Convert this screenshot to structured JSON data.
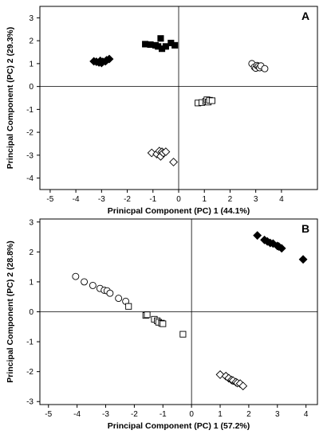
{
  "chart_data": [
    {
      "type": "scatter",
      "panel_label": "A",
      "xlabel": "Prinicpal Component (PC) 1 (44.1%)",
      "ylabel": "Principal Component (PC) 2 (29.3%)",
      "xlim": [
        -5.4,
        5.4
      ],
      "ylim": [
        -4.5,
        3.5
      ],
      "xticks": [
        -5,
        -4,
        -3,
        -2,
        -1,
        0,
        1,
        2,
        3,
        4
      ],
      "yticks": [
        -4,
        -3,
        -2,
        -1,
        0,
        1,
        2,
        3
      ],
      "zero_lines": true,
      "grid": false,
      "series": [
        {
          "marker": "diamond",
          "filled": true,
          "color": "#000000",
          "points": [
            [
              -3.3,
              1.1
            ],
            [
              -3.2,
              1.08
            ],
            [
              -3.1,
              1.05
            ],
            [
              -3.05,
              1.12
            ],
            [
              -3.0,
              1.03
            ],
            [
              -2.95,
              1.08
            ],
            [
              -2.85,
              1.1
            ],
            [
              -2.8,
              1.15
            ],
            [
              -2.7,
              1.2
            ]
          ]
        },
        {
          "marker": "square",
          "filled": true,
          "color": "#000000",
          "points": [
            [
              -1.3,
              1.85
            ],
            [
              -1.1,
              1.83
            ],
            [
              -0.9,
              1.8
            ],
            [
              -0.8,
              1.75
            ],
            [
              -0.7,
              2.1
            ],
            [
              -0.65,
              1.65
            ],
            [
              -0.5,
              1.75
            ],
            [
              -0.3,
              1.9
            ],
            [
              -0.15,
              1.8
            ]
          ]
        },
        {
          "marker": "circle",
          "filled": false,
          "color": "#000000",
          "points": [
            [
              2.85,
              1.0
            ],
            [
              2.95,
              0.85
            ],
            [
              3.0,
              0.8
            ],
            [
              3.05,
              0.92
            ],
            [
              3.1,
              0.88
            ],
            [
              3.15,
              0.82
            ],
            [
              3.2,
              0.9
            ],
            [
              3.35,
              0.78
            ]
          ]
        },
        {
          "marker": "square",
          "filled": false,
          "color": "#000000",
          "points": [
            [
              0.75,
              -0.72
            ],
            [
              0.9,
              -0.7
            ],
            [
              1.05,
              -0.65
            ],
            [
              1.1,
              -0.58
            ],
            [
              1.15,
              -0.68
            ],
            [
              1.2,
              -0.6
            ],
            [
              1.3,
              -0.62
            ]
          ]
        },
        {
          "marker": "diamond",
          "filled": false,
          "color": "#000000",
          "points": [
            [
              -1.05,
              -2.9
            ],
            [
              -0.85,
              -2.95
            ],
            [
              -0.75,
              -2.82
            ],
            [
              -0.7,
              -3.05
            ],
            [
              -0.65,
              -2.85
            ],
            [
              -0.6,
              -2.9
            ],
            [
              -0.5,
              -2.85
            ],
            [
              -0.2,
              -3.3
            ]
          ]
        }
      ]
    },
    {
      "type": "scatter",
      "panel_label": "B",
      "xlabel": "Principal Component (PC) 1 (57.2%)",
      "ylabel": "Principal Component (PC) 2 (28.8%)",
      "xlim": [
        -5.3,
        4.4
      ],
      "ylim": [
        -3.1,
        3.1
      ],
      "xticks": [
        -5,
        -4,
        -3,
        -2,
        -1,
        0,
        1,
        2,
        3,
        4
      ],
      "yticks": [
        -3,
        -2,
        -1,
        0,
        1,
        2,
        3
      ],
      "zero_lines": true,
      "grid": false,
      "series": [
        {
          "marker": "diamond",
          "filled": true,
          "color": "#000000",
          "points": [
            [
              2.3,
              2.55
            ],
            [
              2.55,
              2.4
            ],
            [
              2.65,
              2.35
            ],
            [
              2.75,
              2.3
            ],
            [
              2.85,
              2.28
            ],
            [
              3.0,
              2.2
            ],
            [
              3.05,
              2.18
            ],
            [
              3.15,
              2.12
            ],
            [
              3.9,
              1.75
            ]
          ]
        },
        {
          "marker": "circle",
          "filled": false,
          "color": "#000000",
          "points": [
            [
              -4.05,
              1.18
            ],
            [
              -3.75,
              1.0
            ],
            [
              -3.45,
              0.88
            ],
            [
              -3.2,
              0.78
            ],
            [
              -3.05,
              0.72
            ],
            [
              -2.95,
              0.7
            ],
            [
              -2.85,
              0.62
            ],
            [
              -2.55,
              0.45
            ],
            [
              -2.3,
              0.35
            ]
          ]
        },
        {
          "marker": "square",
          "filled": false,
          "color": "#000000",
          "points": [
            [
              -2.2,
              0.18
            ],
            [
              -1.6,
              -0.12
            ],
            [
              -1.55,
              -0.1
            ],
            [
              -1.3,
              -0.25
            ],
            [
              -1.2,
              -0.3
            ],
            [
              -1.15,
              -0.35
            ],
            [
              -1.05,
              -0.38
            ],
            [
              -1.0,
              -0.4
            ],
            [
              -0.3,
              -0.75
            ]
          ]
        },
        {
          "marker": "diamond",
          "filled": false,
          "color": "#000000",
          "points": [
            [
              1.0,
              -2.1
            ],
            [
              1.2,
              -2.15
            ],
            [
              1.3,
              -2.22
            ],
            [
              1.4,
              -2.28
            ],
            [
              1.45,
              -2.3
            ],
            [
              1.55,
              -2.35
            ],
            [
              1.6,
              -2.38
            ],
            [
              1.7,
              -2.4
            ],
            [
              1.8,
              -2.48
            ]
          ]
        }
      ]
    }
  ]
}
